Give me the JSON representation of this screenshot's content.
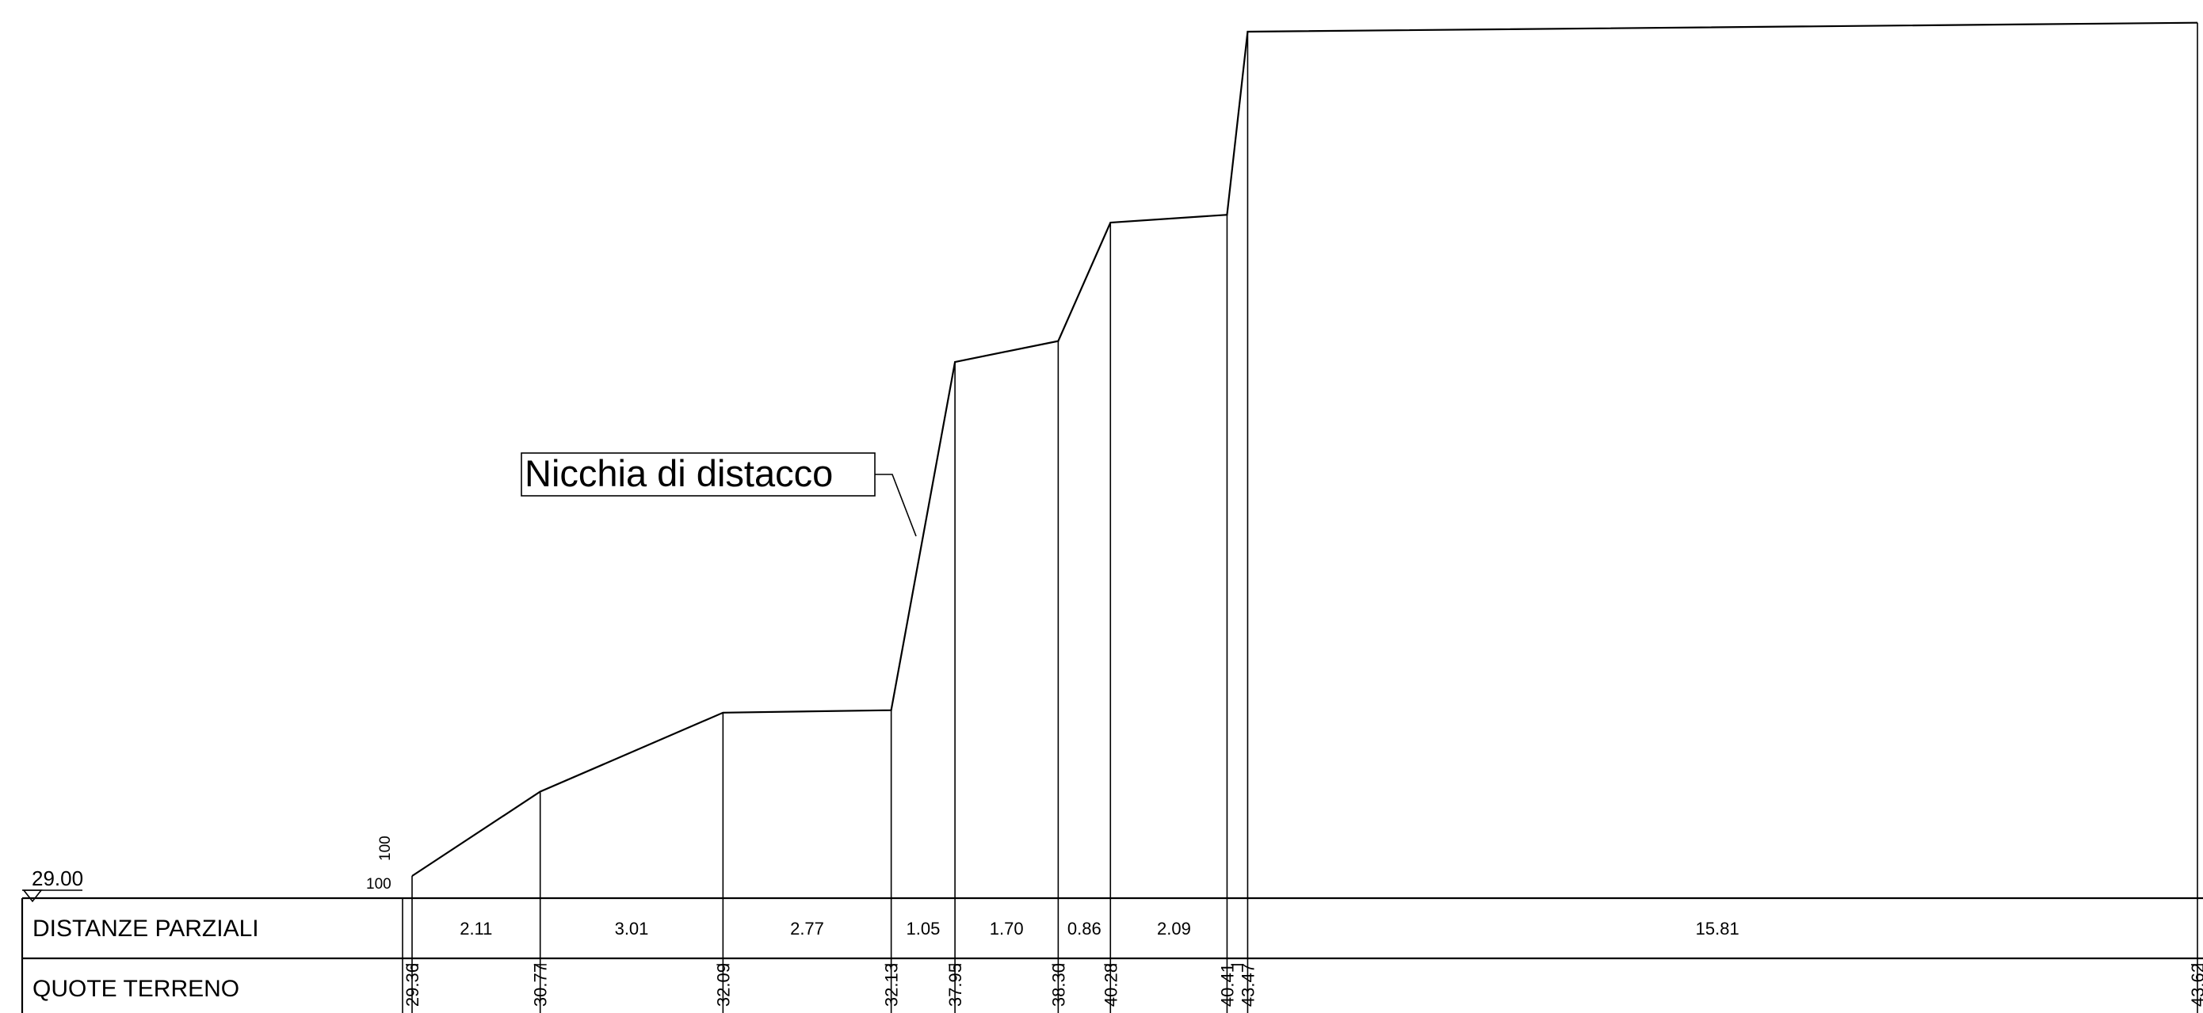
{
  "profile": {
    "reference_level": "29.00",
    "scale_h": "100",
    "scale_v": "100",
    "callout_label": "Nicchia di distacco",
    "rows": {
      "partial_distances_label": "DISTANZE PARZIALI",
      "ground_levels_label": "QUOTE TERRENO"
    },
    "partial_distances": [
      "2.11",
      "3.01",
      "2.77",
      "1.05",
      "1.70",
      "0.86",
      "2.09",
      "15.81"
    ],
    "ground_levels": [
      "29.36",
      "30.77",
      "32.09",
      "32.13",
      "37.95",
      "38.30",
      "40.28",
      "40.41",
      "43.47",
      "43.62"
    ]
  },
  "chart_data": {
    "type": "line",
    "x": [
      0,
      2.11,
      5.12,
      7.89,
      8.94,
      10.64,
      11.5,
      13.59,
      13.59,
      29.4
    ],
    "y": [
      29.36,
      30.77,
      32.09,
      32.13,
      37.95,
      38.3,
      40.28,
      40.41,
      43.47,
      43.62
    ],
    "xlabel": "DISTANZE PARZIALI",
    "ylabel": "QUOTE TERRENO",
    "annotations": [
      "Nicchia di distacco"
    ]
  }
}
